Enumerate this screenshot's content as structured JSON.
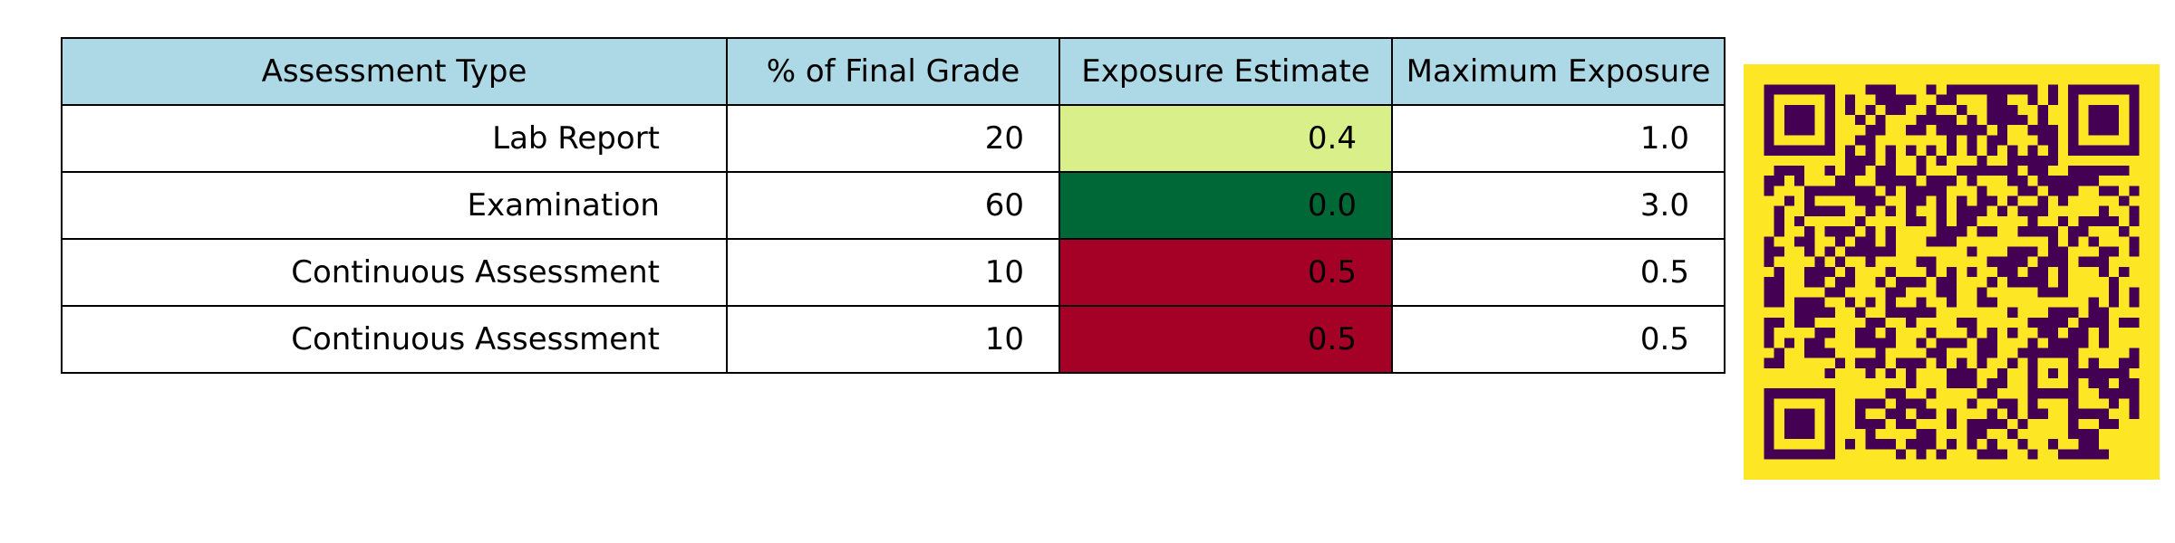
{
  "chart_data": {
    "type": "table",
    "columns": [
      "Assessment Type",
      "% of Final Grade",
      "Exposure Estimate",
      "Maximum Exposure"
    ],
    "rows": [
      [
        "Lab Report",
        "20",
        "0.4",
        "1.0"
      ],
      [
        "Examination",
        "60",
        "0.0",
        "3.0"
      ],
      [
        "Continuous Assessment",
        "10",
        "0.5",
        "0.5"
      ],
      [
        "Continuous Assessment",
        "10",
        "0.5",
        "0.5"
      ]
    ],
    "exposure_cell_colors": [
      "#d9f08a",
      "#006837",
      "#a50026",
      "#a50026"
    ],
    "header_color": "#add8e6"
  },
  "qr_code": {
    "background_color": "#fde725",
    "module_color": "#440154"
  }
}
